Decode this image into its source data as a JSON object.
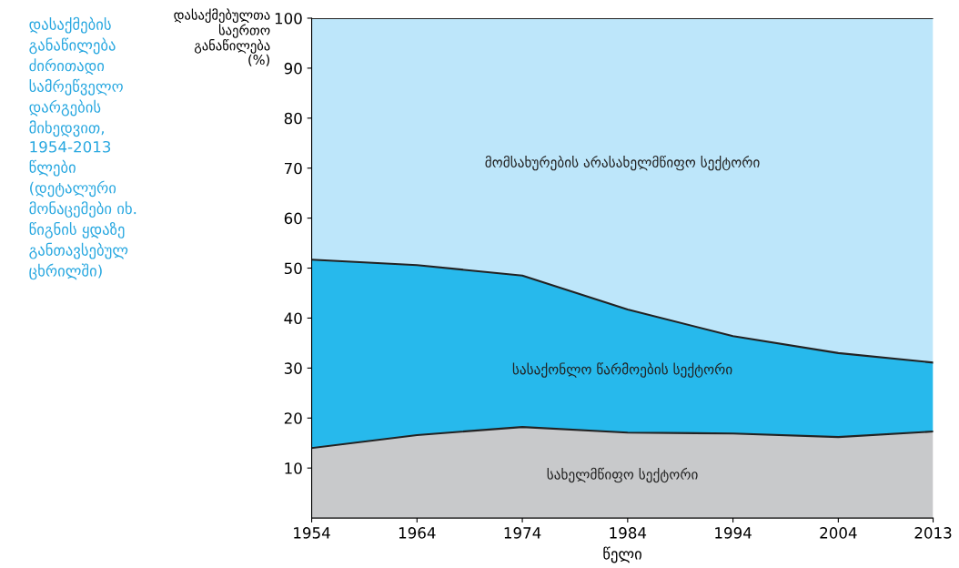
{
  "chart_data": {
    "type": "area",
    "stacked": true,
    "title": "დასაქმების\nგანაწილება\nძირითადი\nსამრეწველო\nდარგების\nმიხედვით,\n1954-2013\nწლები\n(დეტალური\nმონაცემები იხ.\nწიგნის ყდაზე\nგანთავსებულ\nცხრილში)",
    "ylabel": "დასაქმებულთა\nსაერთო\nგანაწილება\n(%)",
    "xlabel": "წელი",
    "x": [
      1954,
      1964,
      1974,
      1984,
      1994,
      2004,
      2013
    ],
    "series": [
      {
        "name": "სახელმწიფო სექტორი",
        "color": "#c8c9cb",
        "values": [
          14.0,
          16.6,
          18.2,
          17.1,
          16.9,
          16.2,
          17.3
        ]
      },
      {
        "name": "სასაქონლო წარმოების სექტორი",
        "color": "#27b9ec",
        "values": [
          37.7,
          34.0,
          30.3,
          24.6,
          19.5,
          16.8,
          13.8
        ]
      },
      {
        "name": "მომსახურების არასახელმწიფო სექტორი",
        "color": "#bde6fa",
        "values": [
          48.3,
          49.4,
          51.5,
          58.3,
          63.6,
          67.0,
          68.9
        ]
      }
    ],
    "xlim": [
      1954,
      2013
    ],
    "xticks": [
      1954,
      1964,
      1974,
      1984,
      1994,
      2004,
      2013
    ],
    "ylim": [
      0,
      100
    ],
    "yticks": [
      10,
      20,
      30,
      40,
      50,
      60,
      70,
      80,
      90,
      100
    ],
    "grid": false,
    "legend": false
  }
}
